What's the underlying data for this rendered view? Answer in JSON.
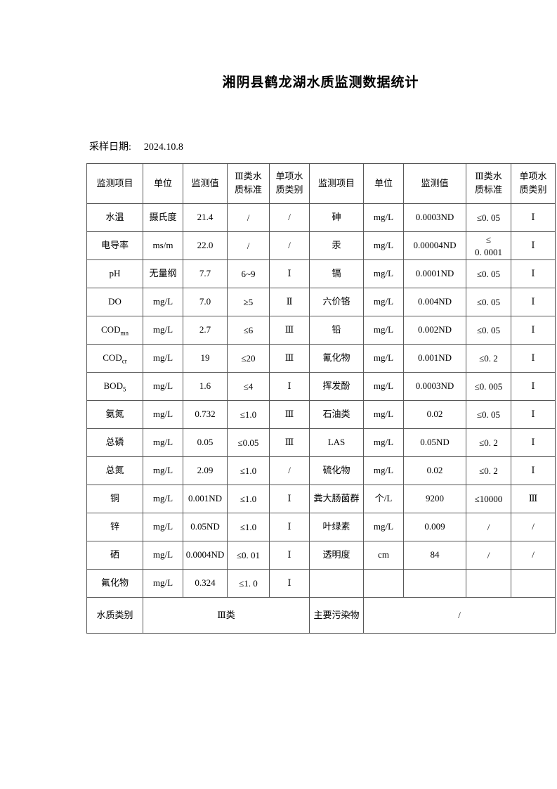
{
  "page": {
    "title": "湘阴县鹤龙湖水质监测数据统计",
    "sample_date_label": "采样日期:",
    "sample_date_value": "2024.10.8"
  },
  "table": {
    "headers": [
      "监测项目",
      "单位",
      "监测值",
      "Ⅲ类水\n质标准",
      "单项水\n质类别",
      "监测项目",
      "单位",
      "监测值",
      "Ⅲ类水\n质标准",
      "单项水\n质类别"
    ],
    "rows": [
      {
        "l": [
          "水温",
          "摄氏度",
          "21.4",
          "/",
          "/"
        ],
        "r": [
          "砷",
          "mg/L",
          "0.0003ND",
          "≤0. 05",
          "Ⅰ"
        ]
      },
      {
        "l": [
          "电导率",
          "ms/m",
          "22.0",
          "/",
          "/"
        ],
        "r": [
          "汞",
          "mg/L",
          "0.00004ND",
          "≤\n0. 0001",
          "Ⅰ"
        ]
      },
      {
        "l": [
          "pH",
          "无量纲",
          "7.7",
          "6~9",
          "Ⅰ"
        ],
        "r": [
          "镉",
          "mg/L",
          "0.0001ND",
          "≤0. 05",
          "Ⅰ"
        ]
      },
      {
        "l": [
          "DO",
          "mg/L",
          "7.0",
          "≥5",
          "Ⅱ"
        ],
        "r": [
          "六价铬",
          "mg/L",
          "0.004ND",
          "≤0. 05",
          "Ⅰ"
        ]
      },
      {
        "l": [
          "COD_{mn}",
          "mg/L",
          "2.7",
          "≤6",
          "Ⅲ"
        ],
        "r": [
          "铅",
          "mg/L",
          "0.002ND",
          "≤0. 05",
          "Ⅰ"
        ]
      },
      {
        "l": [
          "COD_{cr}",
          "mg/L",
          "19",
          "≤20",
          "Ⅲ"
        ],
        "r": [
          "氰化物",
          "mg/L",
          "0.001ND",
          "≤0. 2",
          "Ⅰ"
        ]
      },
      {
        "l": [
          "BOD_{5}",
          "mg/L",
          "1.6",
          "≤4",
          "Ⅰ"
        ],
        "r": [
          "挥发酚",
          "mg/L",
          "0.0003ND",
          "≤0. 005",
          "Ⅰ"
        ]
      },
      {
        "l": [
          "氨氮",
          "mg/L",
          "0.732",
          "≤1.0",
          "Ⅲ"
        ],
        "r": [
          "石油类",
          "mg/L",
          "0.02",
          "≤0. 05",
          "Ⅰ"
        ]
      },
      {
        "l": [
          "总磷",
          "mg/L",
          "0.05",
          "≤0.05",
          "Ⅲ"
        ],
        "r": [
          "LAS",
          "mg/L",
          "0.05ND",
          "≤0. 2",
          "Ⅰ"
        ]
      },
      {
        "l": [
          "总氮",
          "mg/L",
          "2.09",
          "≤1.0",
          "/"
        ],
        "r": [
          "硫化物",
          "mg/L",
          "0.02",
          "≤0. 2",
          "Ⅰ"
        ]
      },
      {
        "l": [
          "铜",
          "mg/L",
          "0.001ND",
          "≤1.0",
          "Ⅰ"
        ],
        "r": [
          "粪大肠菌群",
          "个/L",
          "9200",
          "≤10000",
          "Ⅲ"
        ]
      },
      {
        "l": [
          "锌",
          "mg/L",
          "0.05ND",
          "≤1.0",
          "Ⅰ"
        ],
        "r": [
          "叶绿素",
          "mg/L",
          "0.009",
          "/",
          "/"
        ]
      },
      {
        "l": [
          "硒",
          "mg/L",
          "0.0004ND",
          "≤0. 01",
          "Ⅰ"
        ],
        "r": [
          "透明度",
          "cm",
          "84",
          "/",
          "/"
        ]
      },
      {
        "l": [
          "氟化物",
          "mg/L",
          "0.324",
          "≤1. 0",
          "Ⅰ"
        ],
        "r": [
          "",
          "",
          "",
          "",
          ""
        ]
      }
    ],
    "footer": {
      "water_class_label": "水质类别",
      "water_class_value": "Ⅲ类",
      "pollutant_label": "主要污染物",
      "pollutant_value": "/"
    }
  }
}
